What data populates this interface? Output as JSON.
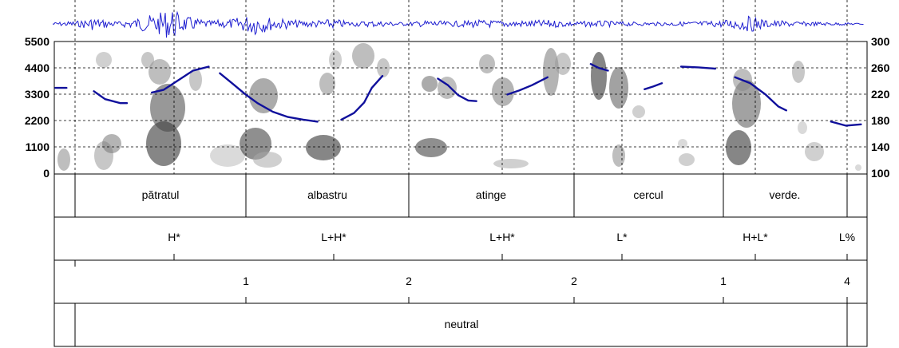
{
  "chart_data": {
    "type": "spectrogram-with-pitch",
    "y_left_ticks": [
      "5500",
      "4400",
      "3300",
      "2200",
      "1100",
      "0"
    ],
    "y_left_range": [
      0,
      5500
    ],
    "y_right_ticks": [
      "300",
      "260",
      "220",
      "180",
      "140",
      "100"
    ],
    "y_right_range": [
      100,
      300
    ],
    "pitch_segments": [
      {
        "points": [
          [
            0.2,
            230
          ],
          [
            2.4,
            230
          ]
        ]
      },
      {
        "points": [
          [
            7.8,
            225
          ],
          [
            10.0,
            213
          ],
          [
            13.0,
            207
          ],
          [
            14.3,
            207
          ]
        ]
      },
      {
        "points": [
          [
            19.2,
            223
          ],
          [
            21.5,
            227
          ],
          [
            24.3,
            241
          ],
          [
            27.3,
            256
          ],
          [
            30.4,
            262
          ]
        ]
      },
      {
        "points": [
          [
            32.6,
            252
          ],
          [
            35.0,
            237
          ],
          [
            37.5,
            221
          ],
          [
            40.0,
            207
          ],
          [
            43.0,
            194
          ],
          [
            46.0,
            186
          ],
          [
            49.0,
            182
          ],
          [
            51.8,
            179
          ]
        ]
      },
      {
        "points": [
          [
            56.5,
            182
          ],
          [
            59.0,
            192
          ],
          [
            61.0,
            208
          ],
          [
            62.5,
            230
          ],
          [
            64.6,
            248
          ]
        ]
      },
      {
        "points": [
          [
            75.5,
            244
          ],
          [
            77.5,
            234
          ],
          [
            79.5,
            219
          ],
          [
            81.5,
            211
          ],
          [
            83.1,
            210
          ]
        ]
      },
      {
        "points": [
          [
            89.2,
            220
          ],
          [
            91.5,
            226
          ],
          [
            94.0,
            234
          ],
          [
            97.1,
            246
          ]
        ]
      },
      {
        "points": [
          [
            105.6,
            266
          ],
          [
            107.2,
            260
          ],
          [
            109.0,
            256
          ]
        ]
      },
      {
        "points": [
          [
            116.2,
            228
          ],
          [
            117.9,
            232
          ],
          [
            119.6,
            237
          ]
        ]
      },
      {
        "points": [
          [
            123.4,
            262
          ],
          [
            126.8,
            261
          ],
          [
            130.1,
            259
          ]
        ]
      },
      {
        "points": [
          [
            134.0,
            246
          ],
          [
            137.0,
            237
          ],
          [
            140.0,
            220
          ],
          [
            142.5,
            202
          ],
          [
            144.1,
            196
          ]
        ]
      },
      {
        "points": [
          [
            152.9,
            179
          ],
          [
            155.8,
            173
          ],
          [
            158.8,
            175
          ]
        ]
      }
    ]
  },
  "tiers": {
    "words": [
      "pătratul",
      "albastru",
      "atinge",
      "cercul",
      "verde."
    ],
    "tones": [
      "H*",
      "L+H*",
      "L+H*",
      "L*",
      "H+L*",
      "L%"
    ],
    "breaks": [
      "1",
      "2",
      "2",
      "1",
      "4"
    ],
    "context": "neutral"
  }
}
